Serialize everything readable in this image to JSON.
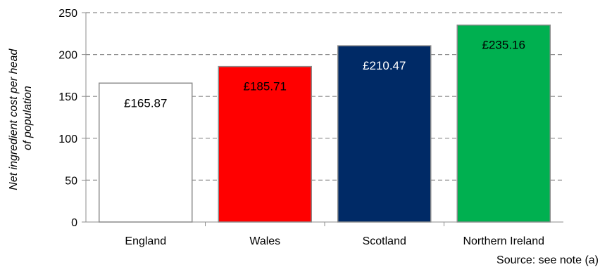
{
  "chart_data": {
    "type": "bar",
    "categories": [
      "England",
      "Wales",
      "Scotland",
      "Northern Ireland"
    ],
    "values": [
      165.87,
      185.71,
      210.47,
      235.16
    ],
    "value_labels": [
      "£165.87",
      "£185.71",
      "£210.47",
      "£235.16"
    ],
    "bar_colors": [
      "#ffffff",
      "#ff0000",
      "#002a66",
      "#00b050"
    ],
    "label_colors": [
      "#000000",
      "#000000",
      "#ffffff",
      "#000000"
    ],
    "ylabel_lines": [
      "Net ingredient cost per head",
      "of population"
    ],
    "ylim": [
      0,
      250
    ],
    "yticks": [
      0,
      50,
      100,
      150,
      200,
      250
    ],
    "grid": true,
    "legend": "none"
  },
  "source_note": "Source: see note (a)"
}
